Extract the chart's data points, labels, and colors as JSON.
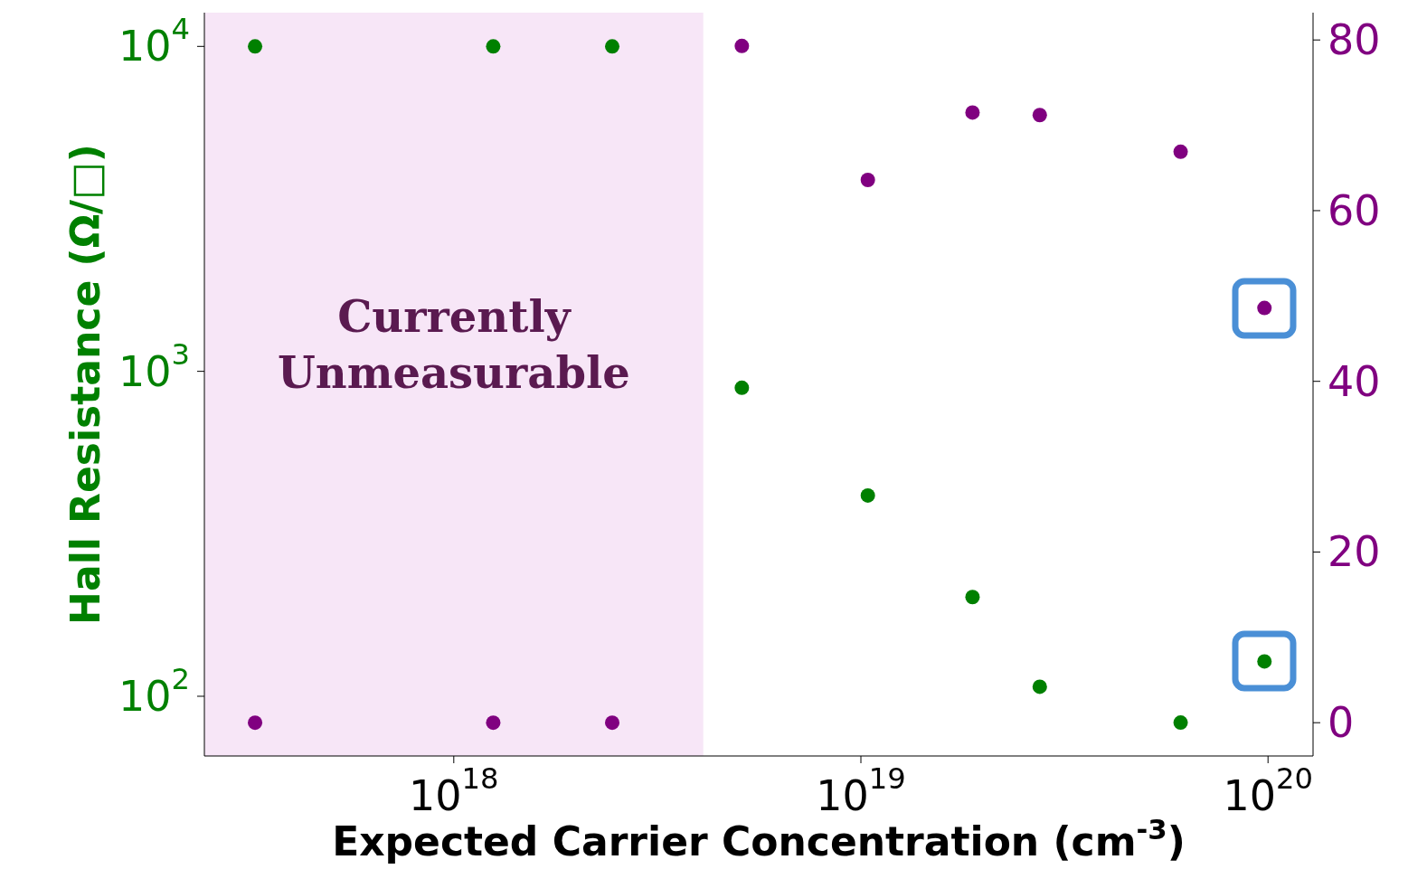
{
  "chart_data": {
    "type": "scatter",
    "xlabel": "Expected Carrier Concentration (cm$^{-3}$)",
    "ylabel": "Hall Resistance (Ω/□)",
    "log": "xy",
    "marker": "circle",
    "grid": false,
    "xlim": [
      2.44e+17,
      1.29e+20
    ],
    "xticks": [
      {
        "value": 1e+18,
        "label": "10$^{18}$"
      },
      {
        "value": 1e+19,
        "label": "10$^{19}$"
      },
      {
        "value": 1e+20,
        "label": "10$^{20}$"
      }
    ],
    "ylim": [
      65.5,
      12700
    ],
    "yticks": [
      {
        "value": 100,
        "label": "10$^{2}$"
      },
      {
        "value": 1000,
        "label": "10$^{3}$"
      },
      {
        "value": 10000,
        "label": "10$^{4}$"
      }
    ],
    "y2lim": [
      -3.9,
      83.2
    ],
    "y2ticks": [
      0,
      20,
      40,
      60,
      80
    ],
    "series": [
      {
        "color": "#008000",
        "axis": "y",
        "x": [
          3.25e+17,
          1.25e+18,
          2.45e+18,
          5.1e+18,
          1.04e+19,
          1.88e+19,
          2.75e+19,
          6.1e+19,
          9.8e+19
        ],
        "values": [
          10000,
          10000,
          10000,
          890,
          415,
          202,
          107,
          83,
          128
        ]
      },
      {
        "color": "#800080",
        "axis": "y2",
        "x": [
          3.25e+17,
          1.25e+18,
          2.45e+18,
          5.1e+18,
          1.04e+19,
          1.88e+19,
          2.75e+19,
          6.1e+19,
          9.8e+19
        ],
        "values": [
          0,
          0,
          0,
          79.3,
          63.6,
          71.5,
          71.2,
          66.9,
          48.6
        ]
      }
    ],
    "bands": [
      {
        "axis": "x",
        "from": 2.44e+17,
        "to": 4.1e+18,
        "label": "Currently\nUnmeasurable",
        "color": "#e8b8e8"
      }
    ]
  }
}
